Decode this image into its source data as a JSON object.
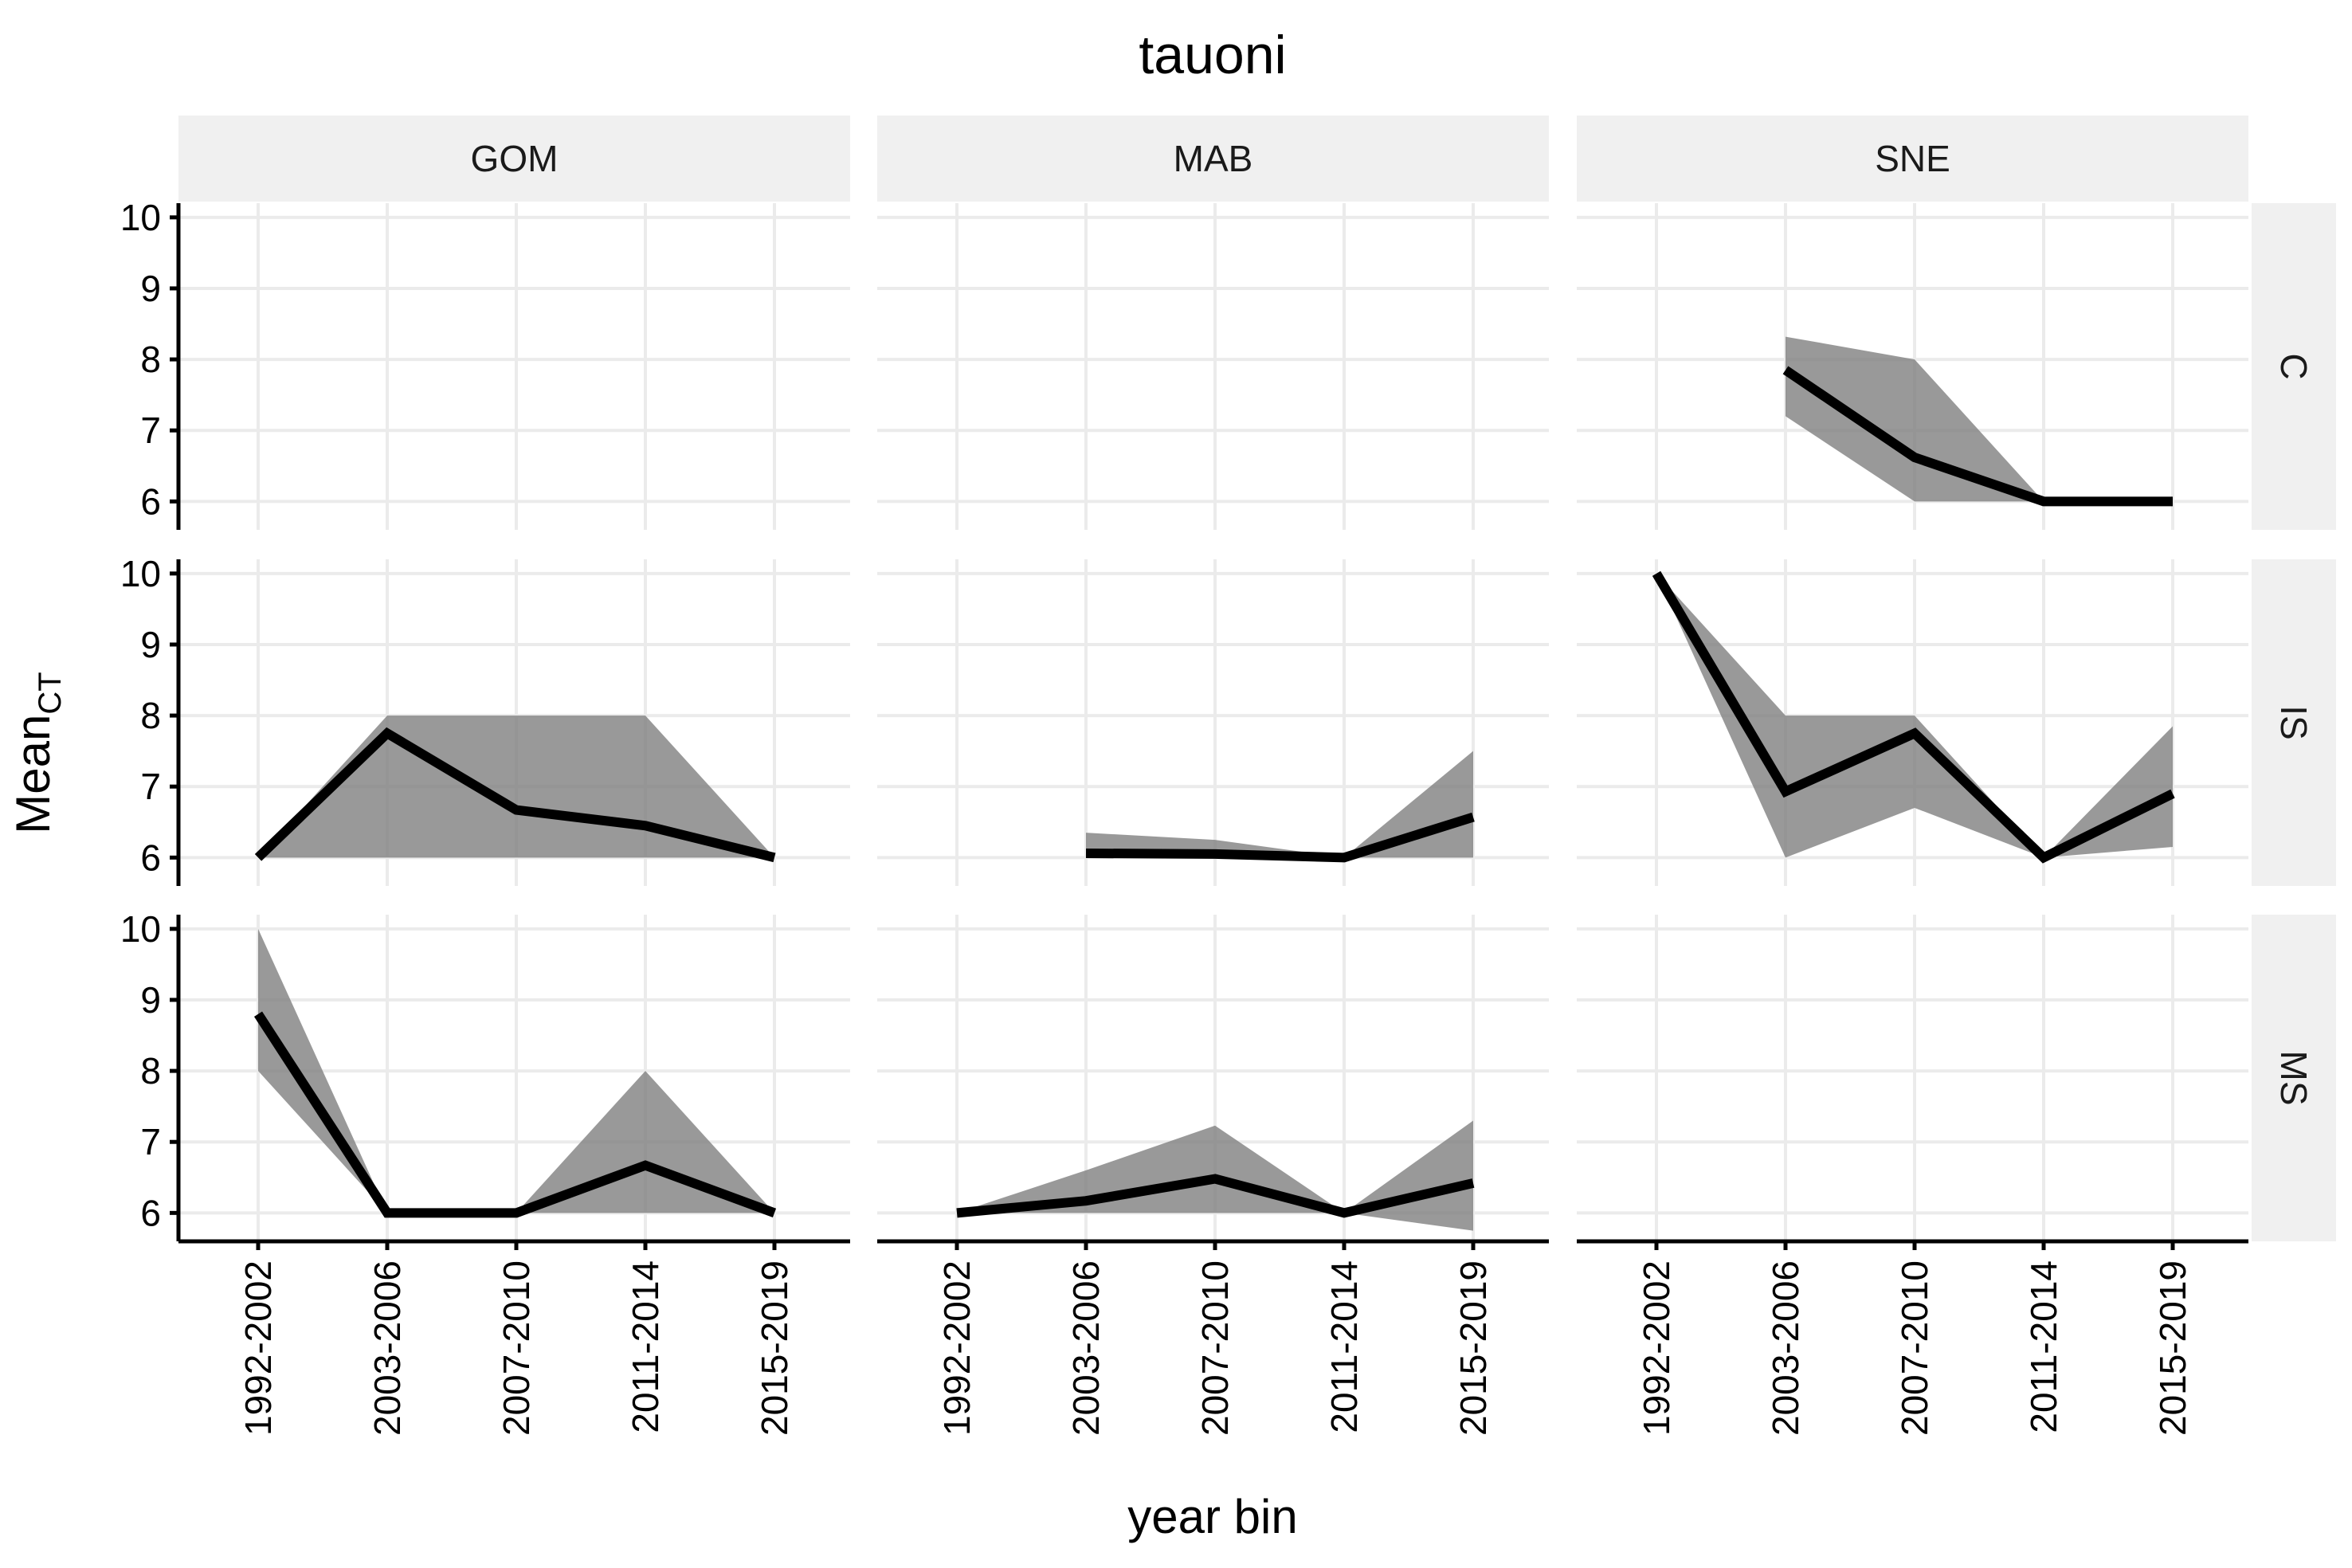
{
  "chart_data": {
    "type": "line",
    "title": "tauoni",
    "xlabel": "year bin",
    "ylabel": "Mean",
    "ylabel_subscript": "CT",
    "categories": [
      "1992-2002",
      "2003-2006",
      "2007-2010",
      "2011-2014",
      "2015-2019"
    ],
    "yticks": [
      6,
      7,
      8,
      9,
      10
    ],
    "ylim": [
      5.6,
      10.2
    ],
    "columns": [
      "GOM",
      "MAB",
      "SNE"
    ],
    "rows": [
      "C",
      "IS",
      "MS"
    ],
    "panels": [
      {
        "row": "C",
        "col": "GOM",
        "values": [],
        "lower": [],
        "upper": []
      },
      {
        "row": "C",
        "col": "MAB",
        "values": [],
        "lower": [],
        "upper": []
      },
      {
        "row": "C",
        "col": "SNE",
        "values": [
          null,
          7.85,
          6.62,
          6.0,
          6.0
        ],
        "lower": [
          null,
          7.2,
          6.0,
          6.0,
          6.0
        ],
        "upper": [
          null,
          8.32,
          8.0,
          6.0,
          6.0
        ]
      },
      {
        "row": "IS",
        "col": "GOM",
        "values": [
          6.0,
          7.75,
          6.67,
          6.45,
          6.0
        ],
        "lower": [
          6.0,
          6.0,
          6.0,
          6.0,
          6.0
        ],
        "upper": [
          6.0,
          8.0,
          8.0,
          8.0,
          6.0
        ]
      },
      {
        "row": "IS",
        "col": "MAB",
        "values": [
          null,
          6.06,
          6.05,
          6.0,
          6.57
        ],
        "lower": [
          null,
          6.0,
          6.0,
          6.0,
          6.0
        ],
        "upper": [
          null,
          6.35,
          6.25,
          6.0,
          7.5
        ]
      },
      {
        "row": "IS",
        "col": "SNE",
        "values": [
          10.0,
          6.93,
          7.75,
          6.0,
          6.9
        ],
        "lower": [
          10.0,
          6.0,
          6.7,
          6.0,
          6.15
        ],
        "upper": [
          10.0,
          8.0,
          8.0,
          6.0,
          7.85
        ]
      },
      {
        "row": "MS",
        "col": "GOM",
        "values": [
          8.8,
          6.0,
          6.0,
          6.67,
          6.0
        ],
        "lower": [
          8.0,
          6.0,
          6.0,
          6.0,
          6.0
        ],
        "upper": [
          10.0,
          6.0,
          6.0,
          8.0,
          6.0
        ]
      },
      {
        "row": "MS",
        "col": "MAB",
        "values": [
          6.0,
          6.17,
          6.48,
          6.0,
          6.42
        ],
        "lower": [
          6.0,
          6.0,
          6.0,
          6.0,
          5.75
        ],
        "upper": [
          6.0,
          6.6,
          7.23,
          6.0,
          7.3
        ]
      },
      {
        "row": "MS",
        "col": "SNE",
        "values": [],
        "lower": [],
        "upper": []
      }
    ]
  }
}
